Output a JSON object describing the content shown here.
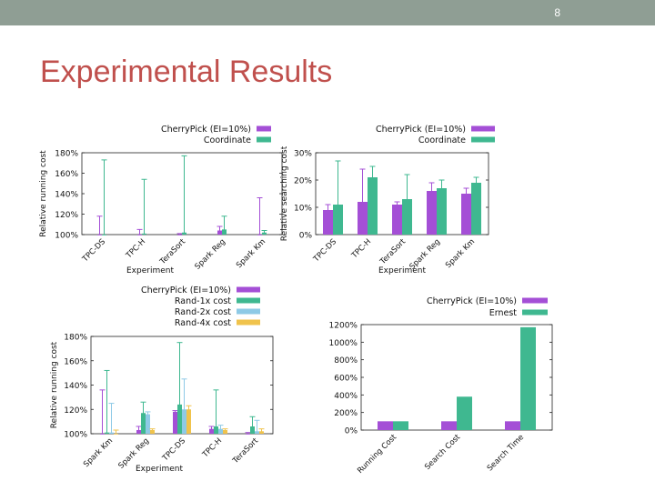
{
  "slide": {
    "number": "8",
    "title": "Experimental Results"
  },
  "chart_data": [
    {
      "type": "bar",
      "error_bars": true,
      "categories": [
        "TPC-DS",
        "TPC-H",
        "TeraSort",
        "Spark Reg",
        "Spark Km"
      ],
      "series": [
        {
          "name": "CherryPick (EI=10%)",
          "color": "#a44fd6",
          "values": [
            100,
            100,
            100,
            104,
            100
          ],
          "err_high": [
            118,
            105,
            101,
            108,
            136
          ]
        },
        {
          "name": "Coordinate",
          "color": "#3fb890",
          "values": [
            100,
            101,
            102,
            105,
            102
          ],
          "err_high": [
            173,
            154,
            177,
            118,
            104
          ]
        }
      ],
      "xlabel": "Experiment",
      "ylabel": "Relative running cost",
      "ylim": [
        100,
        180
      ],
      "yticks": [
        100,
        120,
        140,
        160,
        180
      ],
      "ytick_labels": [
        "100%",
        "120%",
        "140%",
        "160%",
        "180%"
      ],
      "legend_position": "top-right"
    },
    {
      "type": "bar",
      "error_bars": true,
      "categories": [
        "TPC-DS",
        "TPC-H",
        "TeraSort",
        "Spark Reg",
        "Spark Km"
      ],
      "series": [
        {
          "name": "CherryPick (EI=10%)",
          "color": "#a44fd6",
          "values": [
            9,
            12,
            11,
            16,
            15
          ],
          "err_low": [
            7,
            6,
            9,
            12,
            12
          ],
          "err_high": [
            11,
            24,
            12,
            19,
            17
          ]
        },
        {
          "name": "Coordinate",
          "color": "#3fb890",
          "values": [
            11,
            21,
            13,
            17,
            19
          ],
          "err_low": [
            5,
            12,
            6,
            13,
            16
          ],
          "err_high": [
            27,
            25,
            22,
            20,
            21
          ]
        }
      ],
      "xlabel": "Experiment",
      "ylabel": "Relative searching cost",
      "ylim": [
        0,
        30
      ],
      "yticks": [
        0,
        10,
        20,
        30
      ],
      "ytick_labels": [
        "0%",
        "10%",
        "20%",
        "30%"
      ],
      "legend_position": "top-right"
    },
    {
      "type": "bar",
      "error_bars": true,
      "categories": [
        "Spark Km",
        "Spark Reg",
        "TPC-DS",
        "TPC-H",
        "TeraSort"
      ],
      "series": [
        {
          "name": "CherryPick (EI=10%)",
          "color": "#a44fd6",
          "values": [
            100,
            103,
            118,
            104,
            100
          ],
          "err_high": [
            136,
            106,
            119,
            106,
            101
          ]
        },
        {
          "name": "Rand-1x cost",
          "color": "#3fb890",
          "values": [
            101,
            117,
            124,
            106,
            106
          ],
          "err_high": [
            152,
            126,
            175,
            136,
            114
          ]
        },
        {
          "name": "Rand-2x cost",
          "color": "#8ecae6",
          "values": [
            101,
            116,
            120,
            104,
            102
          ],
          "err_high": [
            125,
            118,
            145,
            107,
            111
          ]
        },
        {
          "name": "Rand-4x cost",
          "color": "#f0c34c",
          "values": [
            100,
            103,
            120,
            103,
            102
          ],
          "err_high": [
            103,
            104,
            123,
            104,
            104
          ]
        }
      ],
      "xlabel": "Experiment",
      "ylabel": "Relative running cost",
      "ylim": [
        100,
        180
      ],
      "yticks": [
        100,
        120,
        140,
        160,
        180
      ],
      "ytick_labels": [
        "100%",
        "120%",
        "140%",
        "160%",
        "180%"
      ],
      "legend_position": "top-right"
    },
    {
      "type": "bar",
      "categories": [
        "Running Cost",
        "Search Cost",
        "Search Time"
      ],
      "series": [
        {
          "name": "CherryPick (EI=10%)",
          "color": "#a44fd6",
          "values": [
            100,
            100,
            100
          ]
        },
        {
          "name": "Ernest",
          "color": "#3fb890",
          "values": [
            100,
            380,
            1170
          ]
        }
      ],
      "ylim": [
        0,
        1200
      ],
      "yticks": [
        0,
        200,
        400,
        600,
        800,
        1000,
        1200
      ],
      "ytick_labels": [
        "0%",
        "200%",
        "400%",
        "600%",
        "800%",
        "1000%",
        "1200%"
      ],
      "legend_position": "top-right"
    }
  ]
}
